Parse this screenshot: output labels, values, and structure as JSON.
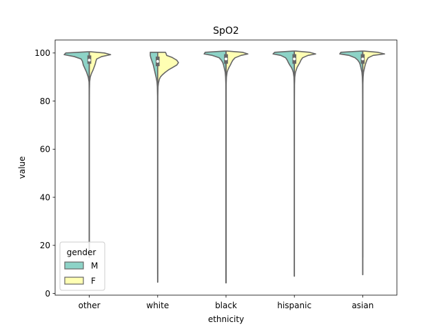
{
  "chart_data": {
    "type": "violin",
    "title": "SpO2",
    "xlabel": "ethnicity",
    "ylabel": "value",
    "ylim": [
      -0.7,
      105.4
    ],
    "yticks": [
      0,
      20,
      40,
      60,
      80,
      100
    ],
    "categories": [
      "other",
      "white",
      "black",
      "hispanic",
      "asian"
    ],
    "split": true,
    "legend": {
      "title": "gender",
      "position": "lower-left",
      "entries": [
        {
          "label": "M",
          "color": "#8dd3c7"
        },
        {
          "label": "F",
          "color": "#ffffb3"
        }
      ]
    },
    "series": [
      {
        "name": "M",
        "color": "#8dd3c7",
        "side": "left",
        "violins": [
          {
            "category": "other",
            "min": 15,
            "max": 100.5,
            "profile": [
              [
                100.5,
                0.05
              ],
              [
                100,
                0.86
              ],
              [
                99.3,
                0.92
              ],
              [
                98.5,
                0.55
              ],
              [
                97.5,
                0.3
              ],
              [
                96.5,
                0.25
              ],
              [
                95,
                0.22
              ],
              [
                93.5,
                0.16
              ],
              [
                92,
                0.1
              ],
              [
                90,
                0.04
              ],
              [
                88,
                0.01
              ],
              [
                85,
                0.004
              ],
              [
                80,
                0.003
              ],
              [
                60,
                0.002
              ],
              [
                40,
                0.002
              ],
              [
                20,
                0.002
              ],
              [
                15,
                0.002
              ]
            ],
            "quartiles": [
              95.5,
              97,
              99
            ],
            "whiskers": [
              92,
              100
            ]
          },
          {
            "category": "white",
            "min": 4.7,
            "max": 100.3,
            "profile": [
              [
                100.3,
                0.27
              ],
              [
                100,
                0.27
              ],
              [
                99,
                0.27
              ],
              [
                98,
                0.25
              ],
              [
                97,
                0.22
              ],
              [
                96,
                0.19
              ],
              [
                95,
                0.16
              ],
              [
                94,
                0.14
              ],
              [
                93,
                0.12
              ],
              [
                92,
                0.1
              ],
              [
                91,
                0.08
              ],
              [
                89.5,
                0.05
              ],
              [
                88,
                0.025
              ],
              [
                86,
                0.012
              ],
              [
                82,
                0.005
              ],
              [
                70,
                0.003
              ],
              [
                40,
                0.003
              ],
              [
                10,
                0.003
              ],
              [
                4.7,
                0.002
              ]
            ],
            "quartiles": [
              94.5,
              96.5,
              98.5
            ],
            "whiskers": [
              90,
              100
            ]
          },
          {
            "category": "black",
            "min": 4.4,
            "max": 100.8,
            "profile": [
              [
                100.8,
                0.05
              ],
              [
                100.3,
                0.76
              ],
              [
                99.6,
                0.8
              ],
              [
                99,
                0.5
              ],
              [
                98,
                0.25
              ],
              [
                97,
                0.17
              ],
              [
                96,
                0.12
              ],
              [
                95,
                0.09
              ],
              [
                94,
                0.07
              ],
              [
                93,
                0.05
              ],
              [
                92,
                0.03
              ],
              [
                90,
                0.015
              ],
              [
                87,
                0.006
              ],
              [
                80,
                0.003
              ],
              [
                50,
                0.002
              ],
              [
                20,
                0.002
              ],
              [
                4.4,
                0.002
              ]
            ],
            "quartiles": [
              95.5,
              97.5,
              99.5
            ],
            "whiskers": [
              92,
              100
            ]
          },
          {
            "category": "hispanic",
            "min": 7.2,
            "max": 100.8,
            "profile": [
              [
                100.8,
                0.05
              ],
              [
                100.3,
                0.72
              ],
              [
                99.6,
                0.78
              ],
              [
                99,
                0.5
              ],
              [
                98,
                0.32
              ],
              [
                97,
                0.26
              ],
              [
                96,
                0.22
              ],
              [
                95,
                0.17
              ],
              [
                94,
                0.11
              ],
              [
                93,
                0.07
              ],
              [
                92,
                0.04
              ],
              [
                90,
                0.015
              ],
              [
                87,
                0.006
              ],
              [
                80,
                0.003
              ],
              [
                50,
                0.002
              ],
              [
                20,
                0.002
              ],
              [
                7.2,
                0.002
              ]
            ],
            "quartiles": [
              95.5,
              97.5,
              99.5
            ],
            "whiskers": [
              92,
              100
            ]
          },
          {
            "category": "asian",
            "min": 15,
            "max": 100.8,
            "profile": [
              [
                100.8,
                0.05
              ],
              [
                100.3,
                0.8
              ],
              [
                99.6,
                0.84
              ],
              [
                99,
                0.5
              ],
              [
                98,
                0.28
              ],
              [
                97,
                0.18
              ],
              [
                96,
                0.12
              ],
              [
                95,
                0.09
              ],
              [
                94,
                0.07
              ],
              [
                93,
                0.05
              ],
              [
                92,
                0.03
              ],
              [
                90,
                0.015
              ],
              [
                87,
                0.006
              ],
              [
                80,
                0.003
              ],
              [
                50,
                0.002
              ],
              [
                20,
                0.002
              ],
              [
                15,
                0.002
              ]
            ],
            "quartiles": [
              95.5,
              97.5,
              99.5
            ],
            "whiskers": [
              92,
              100
            ]
          }
        ]
      },
      {
        "name": "F",
        "color": "#ffffb3",
        "side": "right",
        "violins": [
          {
            "category": "other",
            "min": 15,
            "max": 100.5,
            "profile": [
              [
                100.5,
                0.05
              ],
              [
                100,
                0.55
              ],
              [
                99.3,
                0.78
              ],
              [
                98.5,
                0.45
              ],
              [
                97.5,
                0.27
              ],
              [
                96.5,
                0.24
              ],
              [
                95.5,
                0.22
              ],
              [
                94.5,
                0.19
              ],
              [
                93,
                0.14
              ],
              [
                91.5,
                0.08
              ],
              [
                90,
                0.035
              ],
              [
                88,
                0.012
              ],
              [
                85,
                0.005
              ],
              [
                80,
                0.003
              ],
              [
                50,
                0.002
              ],
              [
                20,
                0.002
              ],
              [
                15,
                0.002
              ]
            ],
            "quartiles": [
              95.5,
              97.5,
              99
            ],
            "whiskers": [
              92,
              100
            ]
          },
          {
            "category": "white",
            "min": 4.7,
            "max": 100.3,
            "profile": [
              [
                100.3,
                0.28
              ],
              [
                100,
                0.3
              ],
              [
                99,
                0.33
              ],
              [
                98.2,
                0.52
              ],
              [
                97,
                0.7
              ],
              [
                96,
                0.76
              ],
              [
                95,
                0.7
              ],
              [
                94,
                0.55
              ],
              [
                93,
                0.4
              ],
              [
                92,
                0.28
              ],
              [
                91,
                0.18
              ],
              [
                90,
                0.1
              ],
              [
                89,
                0.06
              ],
              [
                87.5,
                0.03
              ],
              [
                86,
                0.014
              ],
              [
                82,
                0.005
              ],
              [
                70,
                0.003
              ],
              [
                40,
                0.003
              ],
              [
                10,
                0.003
              ],
              [
                4.7,
                0.002
              ]
            ],
            "quartiles": [
              94.5,
              96.5,
              98.5
            ],
            "whiskers": [
              90,
              100
            ]
          },
          {
            "category": "black",
            "min": 4.4,
            "max": 100.8,
            "profile": [
              [
                100.8,
                0.05
              ],
              [
                100.3,
                0.6
              ],
              [
                99.6,
                0.8
              ],
              [
                99,
                0.55
              ],
              [
                98,
                0.33
              ],
              [
                97,
                0.25
              ],
              [
                96,
                0.2
              ],
              [
                95,
                0.16
              ],
              [
                94,
                0.11
              ],
              [
                93,
                0.07
              ],
              [
                92,
                0.04
              ],
              [
                90,
                0.015
              ],
              [
                87,
                0.006
              ],
              [
                80,
                0.003
              ],
              [
                50,
                0.002
              ],
              [
                20,
                0.002
              ],
              [
                4.4,
                0.002
              ]
            ],
            "quartiles": [
              95.5,
              97.5,
              99.5
            ],
            "whiskers": [
              92,
              100
            ]
          },
          {
            "category": "hispanic",
            "min": 7.2,
            "max": 100.8,
            "profile": [
              [
                100.8,
                0.05
              ],
              [
                100.3,
                0.55
              ],
              [
                99.6,
                0.78
              ],
              [
                99,
                0.5
              ],
              [
                98,
                0.3
              ],
              [
                97,
                0.24
              ],
              [
                96,
                0.2
              ],
              [
                95,
                0.15
              ],
              [
                94,
                0.1
              ],
              [
                93,
                0.07
              ],
              [
                92,
                0.04
              ],
              [
                90,
                0.015
              ],
              [
                87,
                0.006
              ],
              [
                80,
                0.003
              ],
              [
                50,
                0.002
              ],
              [
                20,
                0.002
              ],
              [
                7.2,
                0.002
              ]
            ],
            "quartiles": [
              95.5,
              97.5,
              99.5
            ],
            "whiskers": [
              92,
              100
            ]
          },
          {
            "category": "asian",
            "min": 7.8,
            "max": 100.8,
            "profile": [
              [
                100.8,
                0.05
              ],
              [
                100.3,
                0.55
              ],
              [
                99.6,
                0.8
              ],
              [
                99,
                0.38
              ],
              [
                98,
                0.2
              ],
              [
                97,
                0.15
              ],
              [
                96,
                0.12
              ],
              [
                95,
                0.09
              ],
              [
                94,
                0.07
              ],
              [
                93,
                0.05
              ],
              [
                92,
                0.03
              ],
              [
                90,
                0.015
              ],
              [
                87,
                0.006
              ],
              [
                80,
                0.003
              ],
              [
                50,
                0.002
              ],
              [
                20,
                0.002
              ],
              [
                7.8,
                0.002
              ]
            ],
            "quartiles": [
              95.5,
              97.5,
              99.5
            ],
            "whiskers": [
              92,
              100
            ]
          }
        ]
      }
    ]
  }
}
